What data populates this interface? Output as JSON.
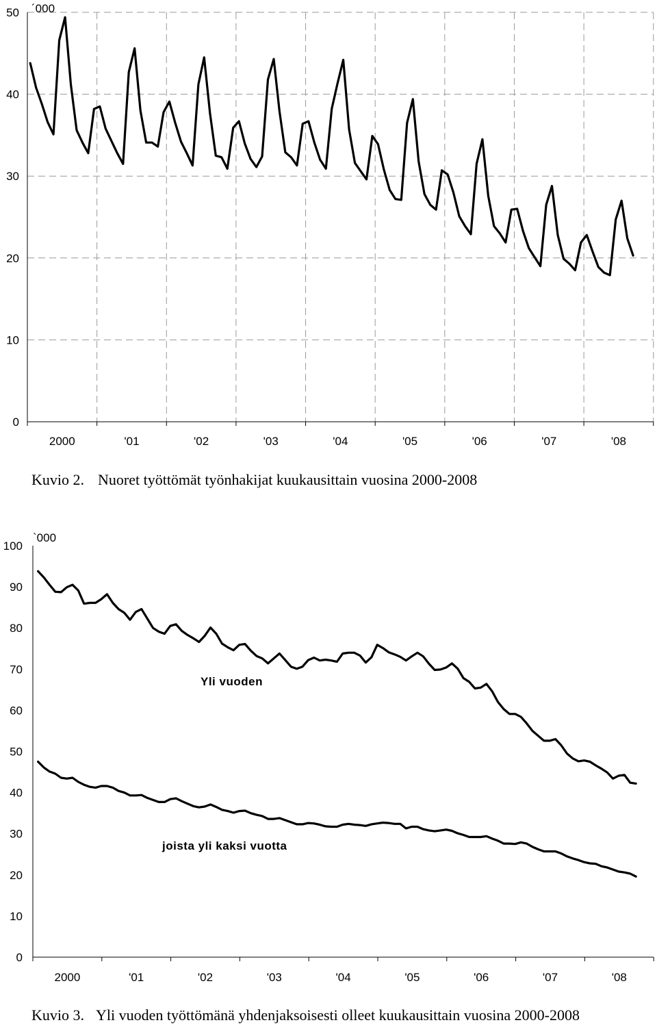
{
  "chart_data": [
    {
      "type": "line",
      "title": "",
      "caption_label": "Kuvio 2.",
      "caption_text": "Nuoret työttömät työnhakijat kuukausittain vuosina 2000-2008",
      "unit_label": "´000",
      "ylim": [
        0,
        50
      ],
      "y_ticks": [
        "0",
        "10",
        "20",
        "30",
        "40",
        "50"
      ],
      "x_tick_labels": [
        "2000",
        "'01",
        "'02",
        "'03",
        "'04",
        "'05",
        "'06",
        "'07",
        "'08"
      ],
      "grid": true,
      "series": [
        {
          "values": [
            43.8,
            40.8,
            38.8,
            36.6,
            35.1,
            46.6,
            49.4,
            41.2,
            35.6,
            34.1,
            32.8,
            38.2,
            38.5,
            35.8,
            34.3,
            32.8,
            31.5,
            42.7,
            45.6,
            38.0,
            34.1,
            34.1,
            33.6,
            37.8,
            39.1,
            36.5,
            34.2,
            32.8,
            31.3,
            41.2,
            44.5,
            37.7,
            32.5,
            32.3,
            30.9,
            35.9,
            36.7,
            34.0,
            32.1,
            31.1,
            32.4,
            41.8,
            44.3,
            37.9,
            32.9,
            32.3,
            31.3,
            36.4,
            36.7,
            34.1,
            32.0,
            30.9,
            38.2,
            41.3,
            44.2,
            35.7,
            31.6,
            30.6,
            29.6,
            34.9,
            33.9,
            30.8,
            28.3,
            27.2,
            27.1,
            36.5,
            39.4,
            31.8,
            27.8,
            26.5,
            25.9,
            30.7,
            30.2,
            28.0,
            25.1,
            23.9,
            22.9,
            31.5,
            34.5,
            27.6,
            23.9,
            23.0,
            21.9,
            25.9,
            26.0,
            23.3,
            21.2,
            20.1,
            19.0,
            26.5,
            28.8,
            22.8,
            19.9,
            19.3,
            18.5,
            21.9,
            22.8,
            20.8,
            18.9,
            18.2,
            17.9,
            24.7,
            27.0,
            22.4,
            20.3
          ]
        }
      ]
    },
    {
      "type": "line",
      "title": "",
      "caption_label": "Kuvio 3.",
      "caption_text": "Yli vuoden työttömänä yhdenjaksoisesti olleet kuukausittain vuosina 2000-2008",
      "unit_label": "`000",
      "ylim": [
        0,
        100
      ],
      "y_ticks": [
        "0",
        "10",
        "20",
        "30",
        "40",
        "50",
        "60",
        "70",
        "80",
        "90",
        "100"
      ],
      "x_tick_labels": [
        "2000",
        "'01",
        "'02",
        "'03",
        "'04",
        "'05",
        "'06",
        "'07",
        "'08"
      ],
      "grid": false,
      "series": [
        {
          "name": "Yli vuoden",
          "values": [
            93.8,
            92.3,
            90.5,
            88.8,
            88.7,
            89.9,
            90.5,
            89.1,
            85.9,
            86.1,
            86.1,
            87.0,
            88.2,
            86.1,
            84.6,
            83.7,
            82.0,
            83.9,
            84.6,
            82.3,
            80.0,
            79.1,
            78.6,
            80.5,
            80.9,
            79.3,
            78.3,
            77.5,
            76.6,
            78.1,
            80.1,
            78.6,
            76.2,
            75.3,
            74.6,
            75.9,
            76.1,
            74.5,
            73.2,
            72.6,
            71.4,
            72.6,
            73.8,
            72.2,
            70.6,
            70.1,
            70.6,
            72.2,
            72.8,
            72.1,
            72.3,
            72.1,
            71.8,
            73.8,
            74.0,
            74.0,
            73.3,
            71.6,
            72.9,
            75.9,
            75.1,
            74.1,
            73.6,
            73.0,
            72.1,
            73.1,
            74.0,
            73.1,
            71.3,
            69.8,
            69.9,
            70.4,
            71.4,
            70.1,
            67.8,
            66.9,
            65.3,
            65.5,
            66.4,
            64.6,
            62.0,
            60.3,
            59.1,
            59.1,
            58.4,
            56.8,
            55.0,
            53.8,
            52.6,
            52.6,
            53.0,
            51.5,
            49.5,
            48.3,
            47.6,
            47.8,
            47.5,
            46.6,
            45.8,
            44.9,
            43.4,
            44.1,
            44.3,
            42.4,
            42.2
          ]
        },
        {
          "name": "joista yli kaksi vuotta",
          "values": [
            47.5,
            46.1,
            45.1,
            44.6,
            43.6,
            43.4,
            43.6,
            42.6,
            41.9,
            41.4,
            41.2,
            41.6,
            41.6,
            41.2,
            40.4,
            40.0,
            39.3,
            39.3,
            39.4,
            38.7,
            38.2,
            37.7,
            37.7,
            38.4,
            38.6,
            37.9,
            37.3,
            36.7,
            36.4,
            36.6,
            37.1,
            36.5,
            35.8,
            35.5,
            35.1,
            35.5,
            35.6,
            35.0,
            34.6,
            34.3,
            33.6,
            33.6,
            33.8,
            33.3,
            32.8,
            32.3,
            32.3,
            32.6,
            32.5,
            32.2,
            31.8,
            31.7,
            31.7,
            32.2,
            32.4,
            32.2,
            32.1,
            31.9,
            32.3,
            32.5,
            32.7,
            32.6,
            32.4,
            32.4,
            31.3,
            31.7,
            31.7,
            31.1,
            30.8,
            30.6,
            30.8,
            31.0,
            30.7,
            30.1,
            29.7,
            29.2,
            29.2,
            29.2,
            29.4,
            28.8,
            28.3,
            27.6,
            27.6,
            27.5,
            27.9,
            27.6,
            26.8,
            26.2,
            25.7,
            25.7,
            25.7,
            25.2,
            24.5,
            24.0,
            23.6,
            23.1,
            22.8,
            22.7,
            22.1,
            21.8,
            21.3,
            20.8,
            20.6,
            20.3,
            19.6
          ]
        }
      ]
    }
  ]
}
